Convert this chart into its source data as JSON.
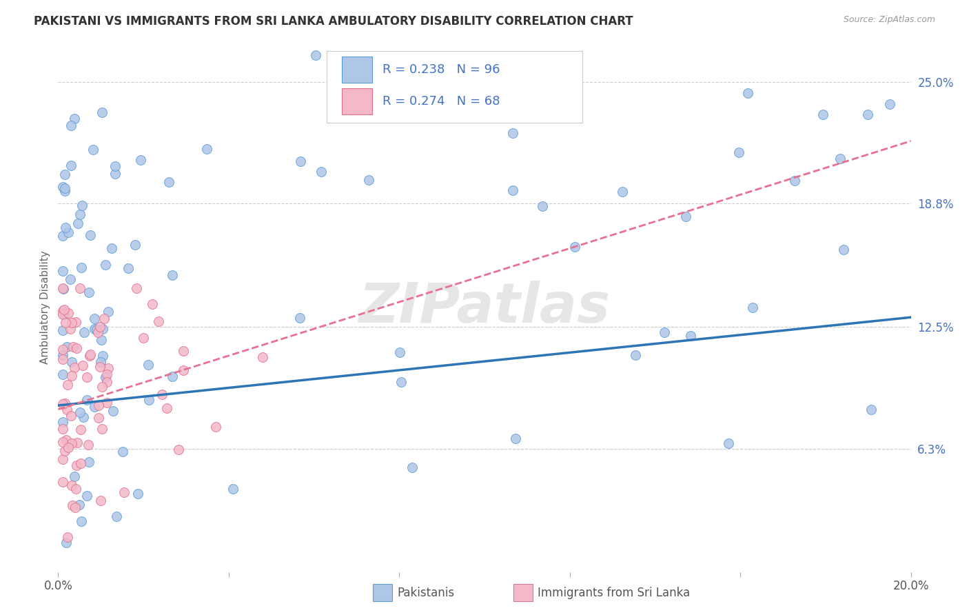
{
  "title": "PAKISTANI VS IMMIGRANTS FROM SRI LANKA AMBULATORY DISABILITY CORRELATION CHART",
  "source": "Source: ZipAtlas.com",
  "ylabel": "Ambulatory Disability",
  "xlim": [
    0.0,
    0.2
  ],
  "ylim": [
    0.0,
    0.27
  ],
  "xticks": [
    0.0,
    0.04,
    0.08,
    0.12,
    0.16,
    0.2
  ],
  "xticklabels": [
    "0.0%",
    "",
    "",
    "",
    "",
    "20.0%"
  ],
  "ytick_right_labels": [
    "25.0%",
    "18.8%",
    "12.5%",
    "6.3%"
  ],
  "ytick_right_values": [
    0.25,
    0.188,
    0.125,
    0.063
  ],
  "pakistani_R": 0.238,
  "pakistani_N": 96,
  "srilanka_R": 0.274,
  "srilanka_N": 68,
  "pakistani_color": "#aec6e8",
  "pakistani_edge": "#5b9bd5",
  "srilanka_color": "#f4b8c8",
  "srilanka_edge": "#e07090",
  "trend_pakistani_color": "#2e75b6",
  "trend_srilanka_color": "#e87090",
  "background_color": "#ffffff",
  "watermark": "ZIPatlas",
  "legend_box_color": "#ffffff",
  "legend_border_color": "#cccccc"
}
